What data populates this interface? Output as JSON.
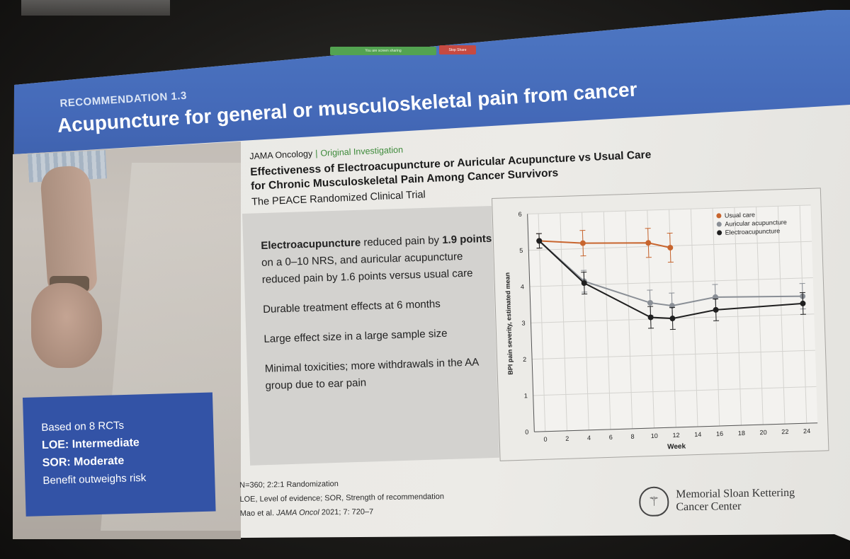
{
  "screen_share": {
    "sharing_text": "You are screen sharing",
    "stop_label": "Stop Share"
  },
  "slide": {
    "recommendation_label": "RECOMMENDATION 1.3",
    "title": "Acupuncture for general or musculoskeletal pain from cancer",
    "journal": {
      "name": "JAMA Oncology",
      "separator": "|",
      "article_type": "Original Investigation",
      "title_line1": "Effectiveness of Electroacupuncture or Auricular Acupuncture vs Usual Care",
      "title_line2": "for Chronic Musculoskeletal Pain Among Cancer Survivors",
      "subtitle": "The PEACE Randomized Clinical Trial"
    },
    "findings": {
      "f1_bold1": "Electroacupuncture",
      "f1_text1": " reduced pain by ",
      "f1_bold2": "1.9 points",
      "f1_text2": " on a 0–10 NRS, and auricular acupuncture reduced pain by 1.6 points versus usual care",
      "f2": "Durable treatment effects at 6 months",
      "f3": "Large effect size in a large sample size",
      "f4": "Minimal toxicities; more withdrawals in the AA group due to ear pain"
    },
    "evidence_box": {
      "line1": "Based on 8 RCTs",
      "line2": "LOE: Intermediate",
      "line3": "SOR: Moderate",
      "line4": "Benefit outweighs risk"
    },
    "footnotes": {
      "line1": "N=360; 2:2:1 Randomization",
      "line2": "LOE, Level of evidence; SOR, Strength of recommendation",
      "line3_pre": "Mao et al. ",
      "line3_journal": "JAMA Oncol",
      "line3_post": " 2021; 7: 720–7"
    },
    "logo": {
      "line1": "Memorial Sloan Kettering",
      "line2": "Cancer Center"
    },
    "colors": {
      "banner": "#4469b8",
      "evidence_box": "#3353a6",
      "journal_accent": "#3d8a3a"
    }
  },
  "chart_data": {
    "type": "line",
    "xlabel": "Week",
    "ylabel": "BPI pain severity, estimated mean",
    "xlim": [
      -1,
      25
    ],
    "ylim": [
      0,
      6
    ],
    "x_ticks": [
      "0",
      "2",
      "4",
      "6",
      "8",
      "10",
      "12",
      "14",
      "16",
      "18",
      "20",
      "22",
      "24"
    ],
    "y_ticks": [
      "0",
      "1",
      "2",
      "3",
      "4",
      "5",
      "6"
    ],
    "legend_position": "top-right",
    "grid": true,
    "series": [
      {
        "name": "Usual care",
        "color": "#c8652e",
        "points": [
          [
            0,
            5.25,
            0.2
          ],
          [
            4,
            5.15,
            0.35
          ],
          [
            10,
            5.1,
            0.4
          ],
          [
            12,
            4.95,
            0.4
          ]
        ]
      },
      {
        "name": "Auricular acupuncture",
        "color": "#8a8f96",
        "points": [
          [
            0,
            5.25,
            0.2
          ],
          [
            4,
            4.1,
            0.3
          ],
          [
            10,
            3.45,
            0.35
          ],
          [
            12,
            3.35,
            0.35
          ],
          [
            16,
            3.55,
            0.35
          ],
          [
            24,
            3.5,
            0.35
          ]
        ]
      },
      {
        "name": "Electroacupuncture",
        "color": "#1f1f1f",
        "points": [
          [
            0,
            5.25,
            0.2
          ],
          [
            4,
            4.05,
            0.3
          ],
          [
            10,
            3.05,
            0.3
          ],
          [
            12,
            3.0,
            0.3
          ],
          [
            16,
            3.2,
            0.3
          ],
          [
            24,
            3.3,
            0.3
          ]
        ]
      }
    ]
  }
}
